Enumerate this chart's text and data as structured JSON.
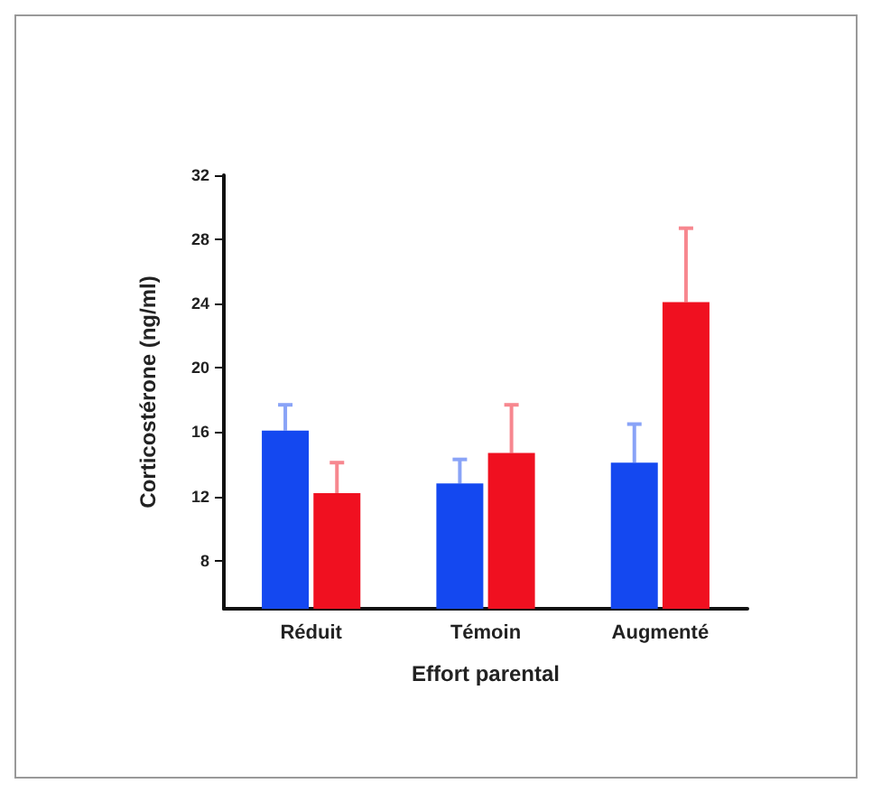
{
  "chart_data": {
    "type": "bar",
    "xlabel": "Effort parental",
    "ylabel": "Corticostérone (ng/ml)",
    "categories": [
      "Réduit",
      "Témoin",
      "Augmenté"
    ],
    "series": [
      {
        "color": "#1448f0",
        "values": [
          16.1,
          12.8,
          14.1
        ],
        "errors": [
          1.6,
          1.5,
          2.4
        ]
      },
      {
        "color": "#f01020",
        "values": [
          12.2,
          14.7,
          24.1
        ],
        "errors": [
          1.9,
          3.0,
          4.6
        ]
      }
    ],
    "ylim": [
      5,
      32
    ],
    "yticks": [
      8,
      12,
      16,
      20,
      24,
      28,
      32
    ]
  }
}
